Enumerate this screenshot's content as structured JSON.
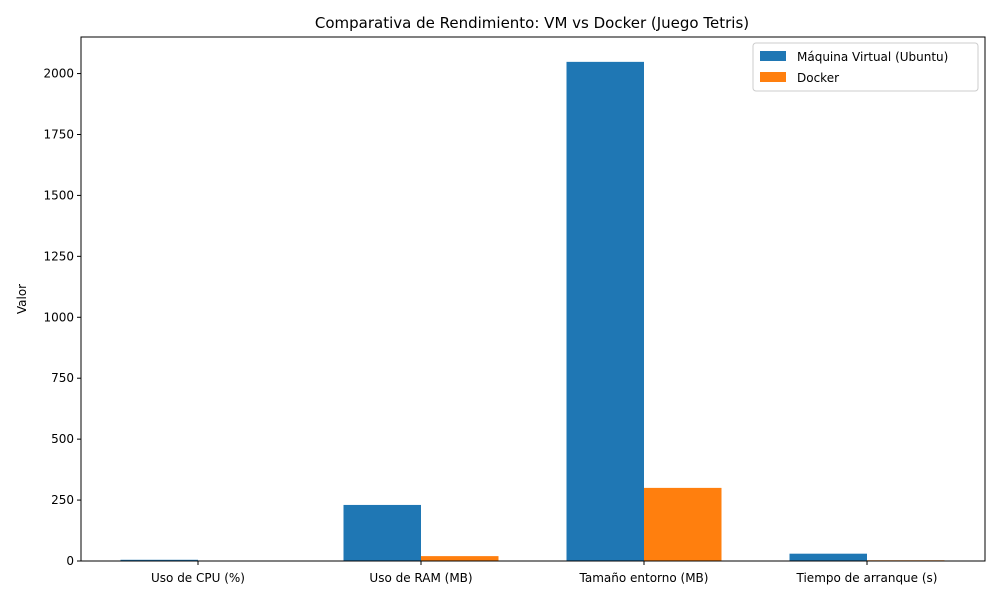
{
  "chart_data": {
    "type": "bar",
    "title": "Comparativa de Rendimiento: VM vs Docker (Juego Tetris)",
    "xlabel": "",
    "ylabel": "Valor",
    "categories": [
      "Uso de CPU (%)",
      "Uso de RAM (MB)",
      "Tamaño entorno (MB)",
      "Tiempo de arranque (s)"
    ],
    "series": [
      {
        "name": "Máquina Virtual (Ubuntu)",
        "color": "#1f77b4",
        "values": [
          5,
          230,
          2048,
          30
        ]
      },
      {
        "name": "Docker",
        "color": "#ff7f0e",
        "values": [
          1,
          20,
          300,
          3
        ]
      }
    ],
    "ylim": [
      0,
      2150
    ],
    "yticks": [
      0,
      250,
      500,
      750,
      1000,
      1250,
      1500,
      1750,
      2000
    ],
    "grid": false,
    "legend": "top-right"
  }
}
